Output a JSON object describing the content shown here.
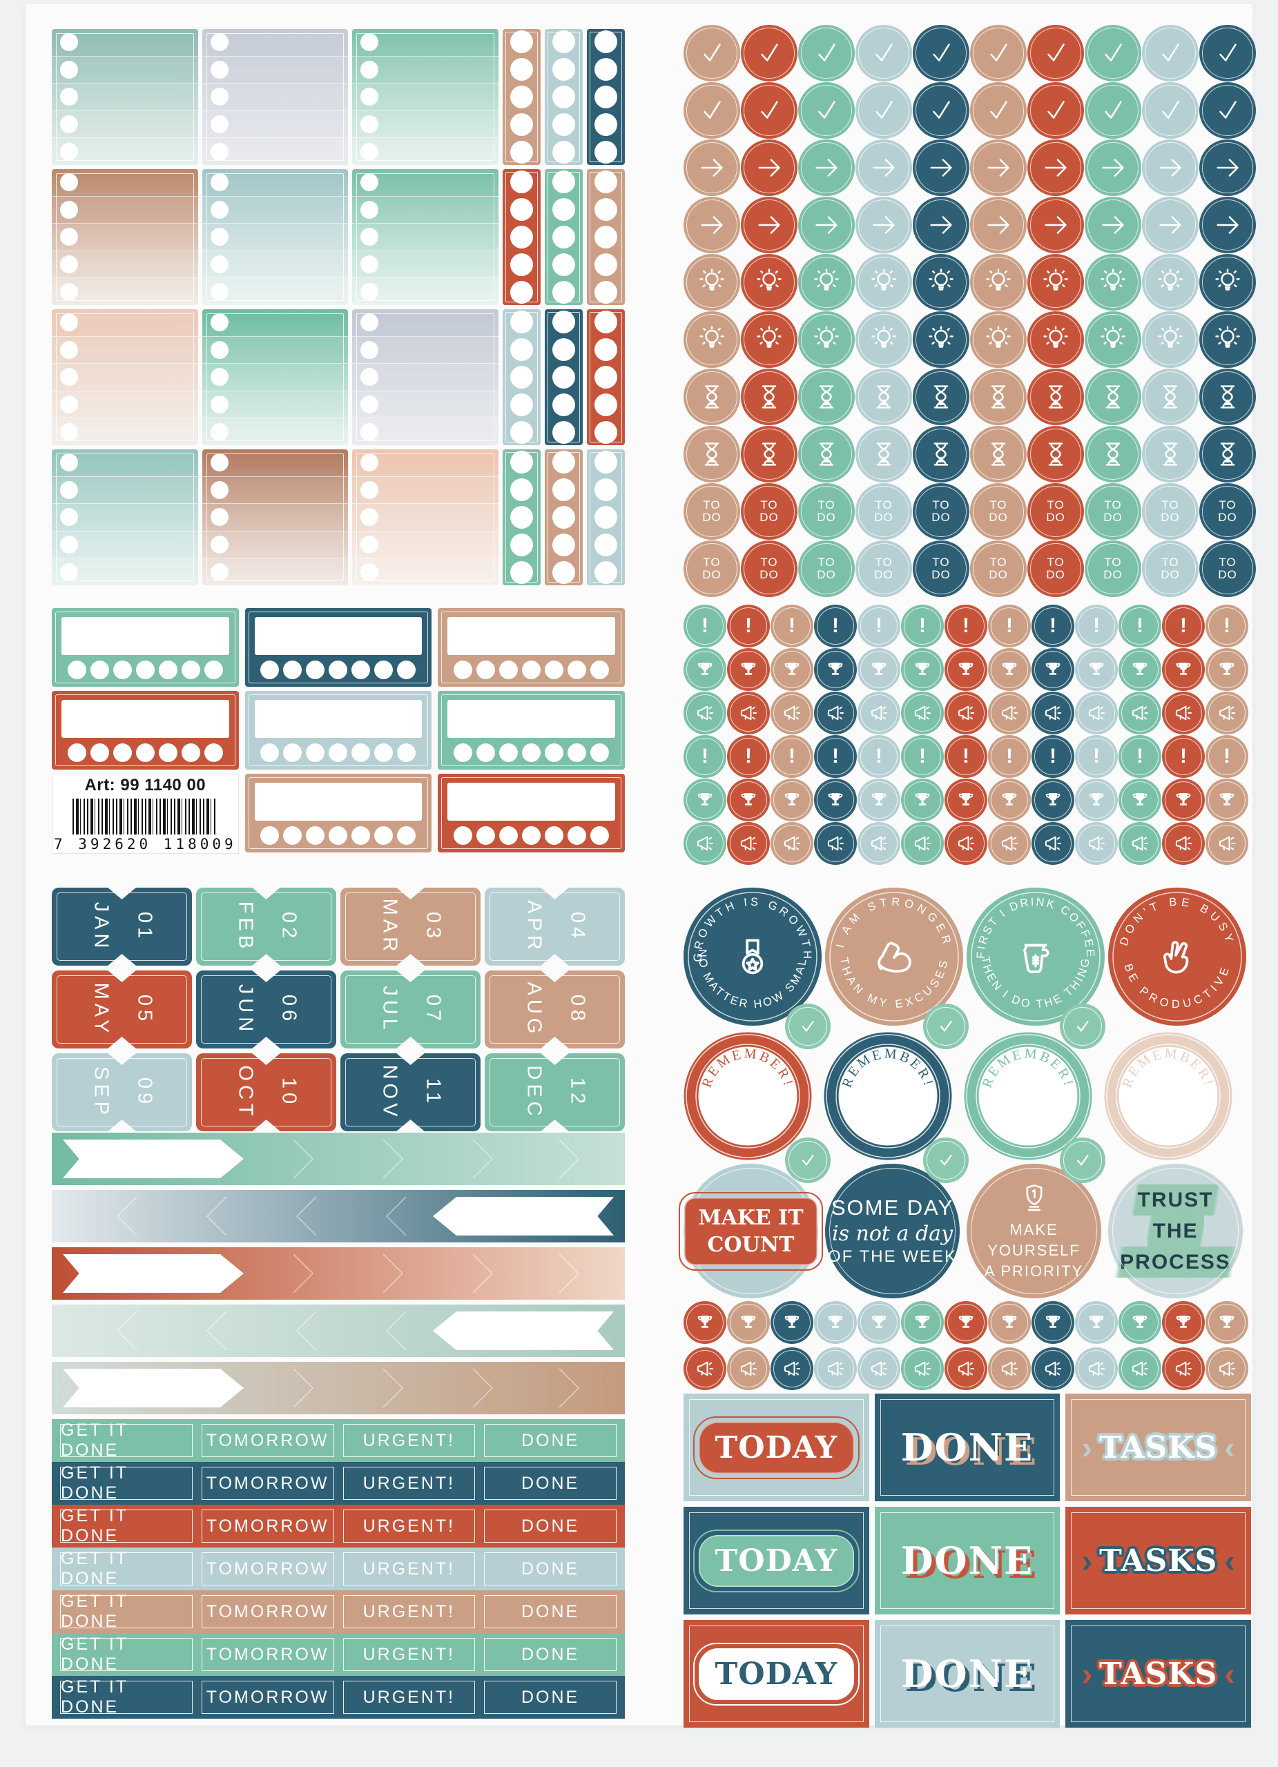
{
  "colors": {
    "darkteal": "#2e5f74",
    "rust": "#c5543a",
    "green": "#7cc0a8",
    "lightblue": "#b5cfd3",
    "tan": "#cb9f85",
    "palepink": "#e7d0c0",
    "greylav": "#c7cdd7",
    "minigreen": "#8bc8b0",
    "trustbg": "#c9d8da",
    "highlight": "#8fc7ae",
    "white": "#ffffff"
  },
  "top_left": {
    "bands": [
      {
        "cols": [
          [
            "#8fbcb4",
            "#d6e6e1"
          ],
          [
            "#c6ccd6",
            "#dcdfe6"
          ],
          [
            "#80c2ab",
            "#d8ece3"
          ]
        ],
        "strips": [
          "tan",
          "lightblue",
          "darkteal"
        ]
      },
      {
        "cols": [
          [
            "#bb8a6c",
            "#ece0d8"
          ],
          [
            "#a2c6c7",
            "#e0edeb"
          ],
          [
            "#7bc0a7",
            "#dcefe6"
          ]
        ],
        "strips": [
          "rust",
          "green",
          "tan"
        ]
      },
      {
        "cols": [
          [
            "#edcab8",
            "#ece5de"
          ],
          [
            "#6fbda1",
            "#daece3"
          ],
          [
            "#c3c9d4",
            "#dfe2e8"
          ]
        ],
        "strips": [
          "lightblue",
          "darkteal",
          "rust"
        ]
      },
      {
        "cols": [
          [
            "#94c5be",
            "#dcecea"
          ],
          [
            "#b37b5f",
            "#eadfd7"
          ],
          [
            "#eec5b0",
            "#f2e7df"
          ]
        ],
        "strips": [
          "green",
          "tan",
          "lightblue"
        ]
      }
    ],
    "trackers": [
      [
        "green",
        "darkteal",
        "tan"
      ],
      [
        "rust",
        "lightblue",
        "green"
      ],
      [
        "barcode",
        "tan",
        "rust"
      ]
    ],
    "barcode": {
      "art": "Art: 99 1140 00",
      "digits": "7 392620 118009"
    }
  },
  "top_right": {
    "big_cols": [
      "tan",
      "rust",
      "green",
      "lightblue",
      "darkteal",
      "tan",
      "rust",
      "green",
      "lightblue",
      "darkteal"
    ],
    "big_rows": [
      "check",
      "check",
      "arrow",
      "arrow",
      "bulb",
      "bulb",
      "hourglass",
      "hourglass",
      "todo",
      "todo"
    ],
    "todo_text": [
      "TO",
      "DO"
    ],
    "small_cols": [
      "green",
      "rust",
      "tan",
      "darkteal",
      "lightblue",
      "green",
      "rust",
      "tan",
      "darkteal",
      "lightblue",
      "green",
      "rust",
      "tan"
    ],
    "small_rows": [
      "excl",
      "trophy",
      "mega",
      "excl",
      "trophy",
      "mega"
    ]
  },
  "bottom_left": {
    "months": [
      {
        "name": "JAN",
        "num": "01",
        "color": "darkteal"
      },
      {
        "name": "FEB",
        "num": "02",
        "color": "green"
      },
      {
        "name": "MAR",
        "num": "03",
        "color": "tan"
      },
      {
        "name": "APR",
        "num": "04",
        "color": "lightblue"
      },
      {
        "name": "MAY",
        "num": "05",
        "color": "rust"
      },
      {
        "name": "JUN",
        "num": "06",
        "color": "darkteal"
      },
      {
        "name": "JUL",
        "num": "07",
        "color": "green"
      },
      {
        "name": "AUG",
        "num": "08",
        "color": "tan"
      },
      {
        "name": "SEP",
        "num": "09",
        "color": "lightblue"
      },
      {
        "name": "OCT",
        "num": "10",
        "color": "rust"
      },
      {
        "name": "NOV",
        "num": "11",
        "color": "darkteal"
      },
      {
        "name": "DEC",
        "num": "12",
        "color": "green"
      }
    ],
    "banners": [
      {
        "from": "#72bba1",
        "to": "#c6e0d6",
        "flag": "left",
        "dir": "right"
      },
      {
        "from": "#e3e9ec",
        "to": "#2d5f73",
        "flag": "right",
        "dir": "left"
      },
      {
        "from": "#bd4f33",
        "to": "#f0d7c7",
        "flag": "left",
        "dir": "right"
      },
      {
        "from": "#dce8e4",
        "to": "#a8cabf",
        "flag": "right",
        "dir": "left"
      },
      {
        "from": "#d0dcd8",
        "to": "#c59a7d",
        "flag": "left",
        "dir": "right"
      }
    ],
    "todo_labels": [
      "GET IT DONE",
      "TOMORROW",
      "URGENT!",
      "DONE"
    ],
    "todo_rows": [
      "green",
      "darkteal",
      "rust",
      "lightblue",
      "tan",
      "green",
      "darkteal"
    ]
  },
  "bottom_right": {
    "quotes_top": [
      {
        "color": "darkteal",
        "top": "GROWTH IS GROWTH",
        "bottom": "NO MATTER HOW SMALL",
        "icon": "medal"
      },
      {
        "color": "tan",
        "top": "I AM STRONGER",
        "bottom": "THAN MY EXCUSES",
        "icon": "bicep"
      },
      {
        "color": "green",
        "top": "FIRST I DRINK COFFEE",
        "bottom": "THEN I DO THE THING",
        "icon": "coffee"
      },
      {
        "color": "rust",
        "top": "DON'T BE BUSY",
        "bottom": "BE PRODUCTIVE",
        "icon": "peace"
      }
    ],
    "remember": {
      "label": "REMEMBER!",
      "colors": [
        "rust",
        "darkteal",
        "green",
        "palepink"
      ]
    },
    "quotes_mid": [
      {
        "type": "badge",
        "bg": "lightblue",
        "badge": "rust",
        "lines": [
          "MAKE IT",
          "COUNT"
        ]
      },
      {
        "type": "someday",
        "bg": "darkteal",
        "line1": "SOME DAY",
        "line2": "is not a day",
        "line3": "OF THE WEEK"
      },
      {
        "type": "priority",
        "bg": "tan",
        "icon": "award",
        "lines": [
          "MAKE",
          "YOURSELF",
          "A PRIORITY"
        ]
      },
      {
        "type": "trust",
        "bg": "trustbg",
        "lines": [
          "TRUST",
          "THE",
          "PROCESS"
        ]
      }
    ],
    "mini_rows": [
      "trophy",
      "mega"
    ],
    "mini_cols": [
      "rust",
      "tan",
      "darkteal",
      "lightblue",
      "lightblue",
      "green",
      "rust",
      "tan",
      "darkteal",
      "lightblue",
      "green",
      "rust",
      "tan"
    ],
    "labels": [
      [
        {
          "text": "TODAY",
          "bg": "lightblue",
          "kind": "badge",
          "badge": "rust",
          "fg": "#ffffff"
        },
        {
          "text": "DONE",
          "bg": "darkteal",
          "kind": "shadow",
          "accent": "tan",
          "fg": "#ffffff"
        },
        {
          "text": "TASKS",
          "bg": "tan",
          "kind": "outline",
          "accent": "lightblue",
          "fg": "#ffffff"
        }
      ],
      [
        {
          "text": "TODAY",
          "bg": "darkteal",
          "kind": "badge",
          "badge": "green",
          "fg": "#ffffff"
        },
        {
          "text": "DONE",
          "bg": "green",
          "kind": "shadow",
          "accent": "rust",
          "fg": "#ffffff"
        },
        {
          "text": "TASKS",
          "bg": "rust",
          "kind": "outline",
          "accent": "darkteal",
          "fg": "#ffffff"
        }
      ],
      [
        {
          "text": "TODAY",
          "bg": "rust",
          "kind": "badge",
          "badge": "#ffffff",
          "fg": "darkteal"
        },
        {
          "text": "DONE",
          "bg": "lightblue",
          "kind": "shadow",
          "accent": "darkteal",
          "fg": "#ffffff"
        },
        {
          "text": "TASKS",
          "bg": "darkteal",
          "kind": "outline",
          "accent": "rust",
          "fg": "#ffffff"
        }
      ]
    ]
  }
}
